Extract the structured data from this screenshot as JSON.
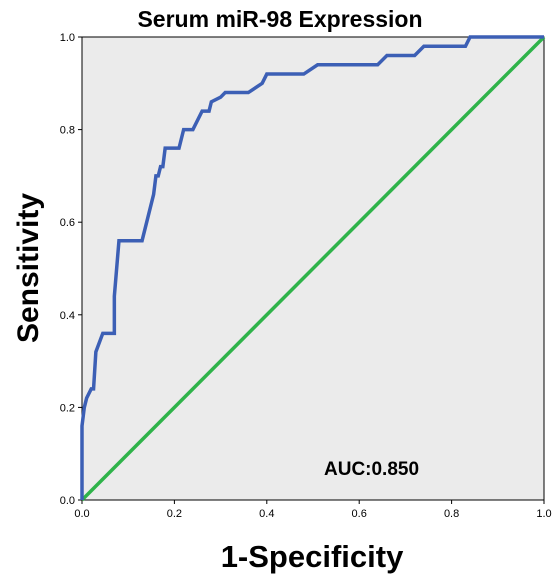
{
  "chart_data": {
    "type": "line",
    "title": "Serum miR-98 Expression",
    "xlabel": "1-Specificity",
    "ylabel": "Sensitivity",
    "xlim": [
      0,
      1
    ],
    "ylim": [
      0,
      1
    ],
    "xticks": [
      "0.0",
      "0.2",
      "0.4",
      "0.6",
      "0.8",
      "1.0"
    ],
    "yticks": [
      "0.0",
      "0.2",
      "0.4",
      "0.6",
      "0.8",
      "1.0"
    ],
    "grid": false,
    "annotation": "AUC:0.850",
    "colors": {
      "background": "#ebebeb",
      "roc": "#3c5fb5",
      "reference": "#2fb34a"
    },
    "series": [
      {
        "values": [
          [
            0.0,
            0.0
          ],
          [
            0.0,
            0.16
          ],
          [
            0.005,
            0.2
          ],
          [
            0.01,
            0.22
          ],
          [
            0.02,
            0.24
          ],
          [
            0.025,
            0.24
          ],
          [
            0.03,
            0.32
          ],
          [
            0.045,
            0.36
          ],
          [
            0.07,
            0.36
          ],
          [
            0.07,
            0.44
          ],
          [
            0.075,
            0.5
          ],
          [
            0.08,
            0.56
          ],
          [
            0.13,
            0.56
          ],
          [
            0.155,
            0.66
          ],
          [
            0.16,
            0.7
          ],
          [
            0.165,
            0.7
          ],
          [
            0.17,
            0.72
          ],
          [
            0.175,
            0.72
          ],
          [
            0.18,
            0.76
          ],
          [
            0.21,
            0.76
          ],
          [
            0.22,
            0.8
          ],
          [
            0.24,
            0.8
          ],
          [
            0.26,
            0.84
          ],
          [
            0.275,
            0.84
          ],
          [
            0.28,
            0.86
          ],
          [
            0.3,
            0.87
          ],
          [
            0.31,
            0.88
          ],
          [
            0.36,
            0.88
          ],
          [
            0.39,
            0.9
          ],
          [
            0.4,
            0.92
          ],
          [
            0.48,
            0.92
          ],
          [
            0.51,
            0.94
          ],
          [
            0.64,
            0.94
          ],
          [
            0.66,
            0.96
          ],
          [
            0.72,
            0.96
          ],
          [
            0.74,
            0.98
          ],
          [
            0.83,
            0.98
          ],
          [
            0.84,
            1.0
          ],
          [
            1.0,
            1.0
          ]
        ]
      },
      {
        "values": [
          [
            0.0,
            0.0
          ],
          [
            1.0,
            1.0
          ]
        ]
      }
    ]
  }
}
